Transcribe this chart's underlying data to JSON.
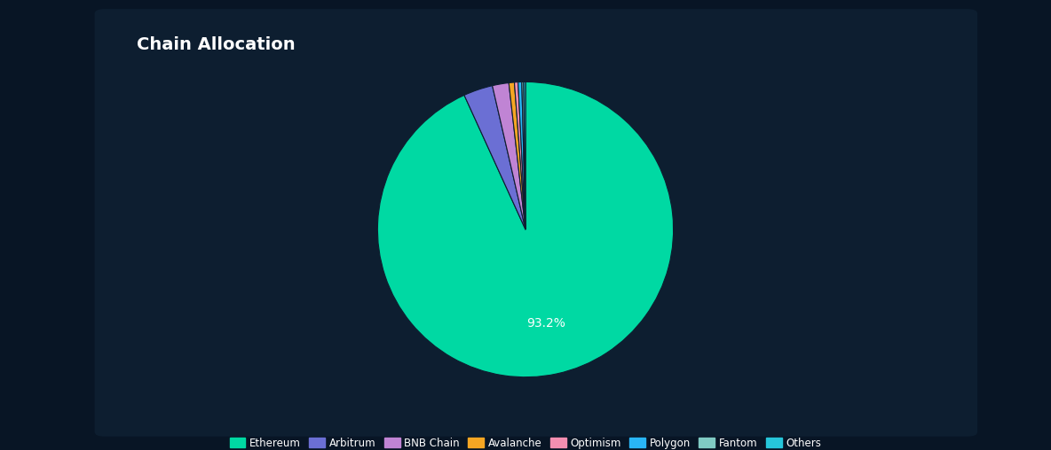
{
  "title": "Chain Allocation",
  "title_color": "#ffffff",
  "title_fontsize": 14,
  "background_color": "#081525",
  "panel_color": "#0d1e30",
  "labels": [
    "Ethereum",
    "Arbitrum",
    "BNB Chain",
    "Avalanche",
    "Optimism",
    "Polygon",
    "Fantom",
    "Others"
  ],
  "values": [
    93.2,
    3.2,
    1.8,
    0.6,
    0.4,
    0.4,
    0.2,
    0.2
  ],
  "colors": [
    "#00d9a3",
    "#6b6fd4",
    "#c084d4",
    "#f5a623",
    "#f48fb1",
    "#29b6f6",
    "#80cbc4",
    "#26c6da"
  ],
  "autopct_color": "#ffffff",
  "legend_labels": [
    "Ethereum",
    "Arbitrum",
    "BNB Chain",
    "Avalanche",
    "Optimism",
    "Polygon",
    "Fantom",
    "Others"
  ],
  "legend_colors": [
    "#00d9a3",
    "#6b6fd4",
    "#c084d4",
    "#f5a623",
    "#f48fb1",
    "#29b6f6",
    "#80cbc4",
    "#26c6da"
  ]
}
